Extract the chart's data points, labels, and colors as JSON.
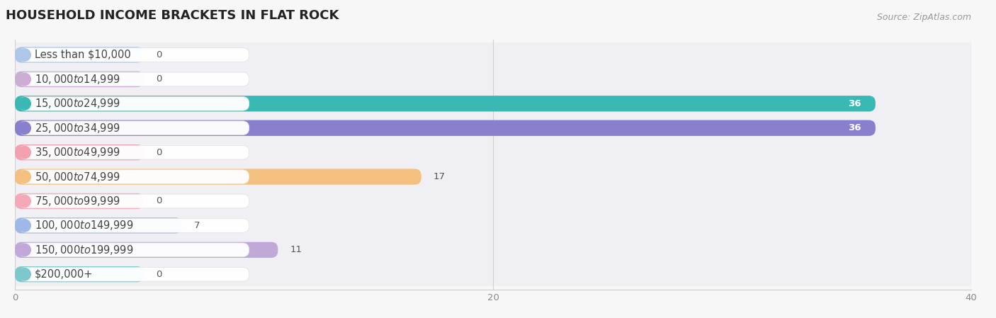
{
  "title": "HOUSEHOLD INCOME BRACKETS IN FLAT ROCK",
  "source": "Source: ZipAtlas.com",
  "categories": [
    "Less than $10,000",
    "$10,000 to $14,999",
    "$15,000 to $24,999",
    "$25,000 to $34,999",
    "$35,000 to $49,999",
    "$50,000 to $74,999",
    "$75,000 to $99,999",
    "$100,000 to $149,999",
    "$150,000 to $199,999",
    "$200,000+"
  ],
  "values": [
    0,
    0,
    36,
    36,
    0,
    17,
    0,
    7,
    11,
    0
  ],
  "bar_colors": [
    "#aec6e8",
    "#ccaed4",
    "#3ab8b4",
    "#8880cc",
    "#f4a0b0",
    "#f4c080",
    "#f4a8b8",
    "#a0b8e8",
    "#c0a8d8",
    "#7cc8cc"
  ],
  "xlim": [
    0,
    40
  ],
  "xticks": [
    0,
    20,
    40
  ],
  "background_color": "#f7f7f7",
  "bar_bg_color": "#e0e0e8",
  "title_fontsize": 13,
  "label_fontsize": 10.5,
  "value_fontsize": 9.5,
  "source_fontsize": 9
}
